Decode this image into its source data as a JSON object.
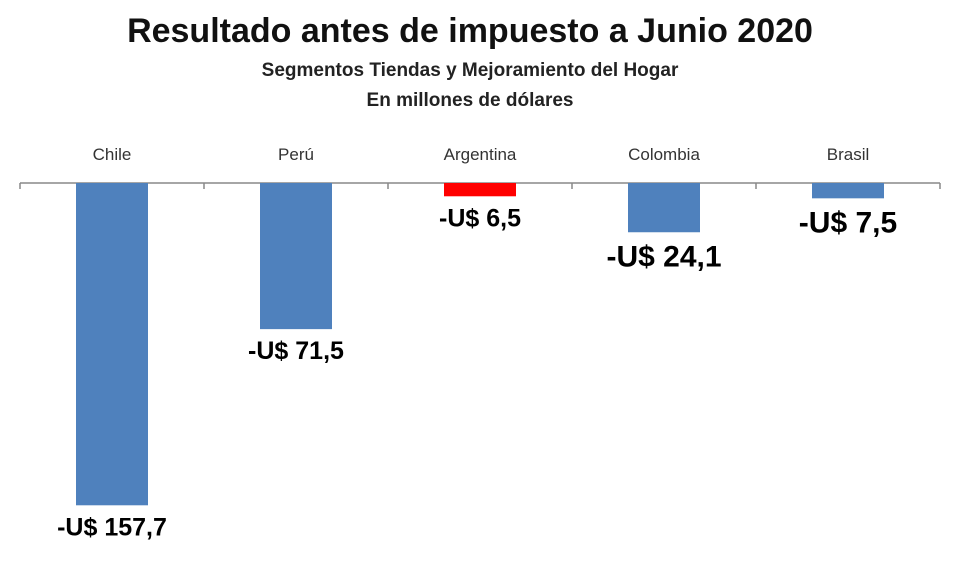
{
  "chart_data": {
    "type": "bar",
    "title": "Resultado antes de impuesto a Junio 2020",
    "subtitle": [
      "Segmentos Tiendas y Mejoramiento del Hogar",
      "En millones de dólares"
    ],
    "categories": [
      "Chile",
      "Perú",
      "Argentina",
      "Colombia",
      "Brasil"
    ],
    "values": [
      -157.7,
      -71.5,
      -6.5,
      -24.1,
      -7.5
    ],
    "data_labels": [
      "-U$ 157,7",
      "-U$ 71,5",
      "-U$ 6,5",
      "-U$ 24,1",
      "-U$ 7,5"
    ],
    "bar_colors": [
      "#4f81bd",
      "#4f81bd",
      "#ff0000",
      "#4f81bd",
      "#4f81bd"
    ],
    "label_emphasis": [
      "normal",
      "normal",
      "normal",
      "large",
      "large"
    ],
    "ylim": [
      -160,
      0
    ],
    "grid": false,
    "legend": "none",
    "category_labels_position": "top"
  }
}
